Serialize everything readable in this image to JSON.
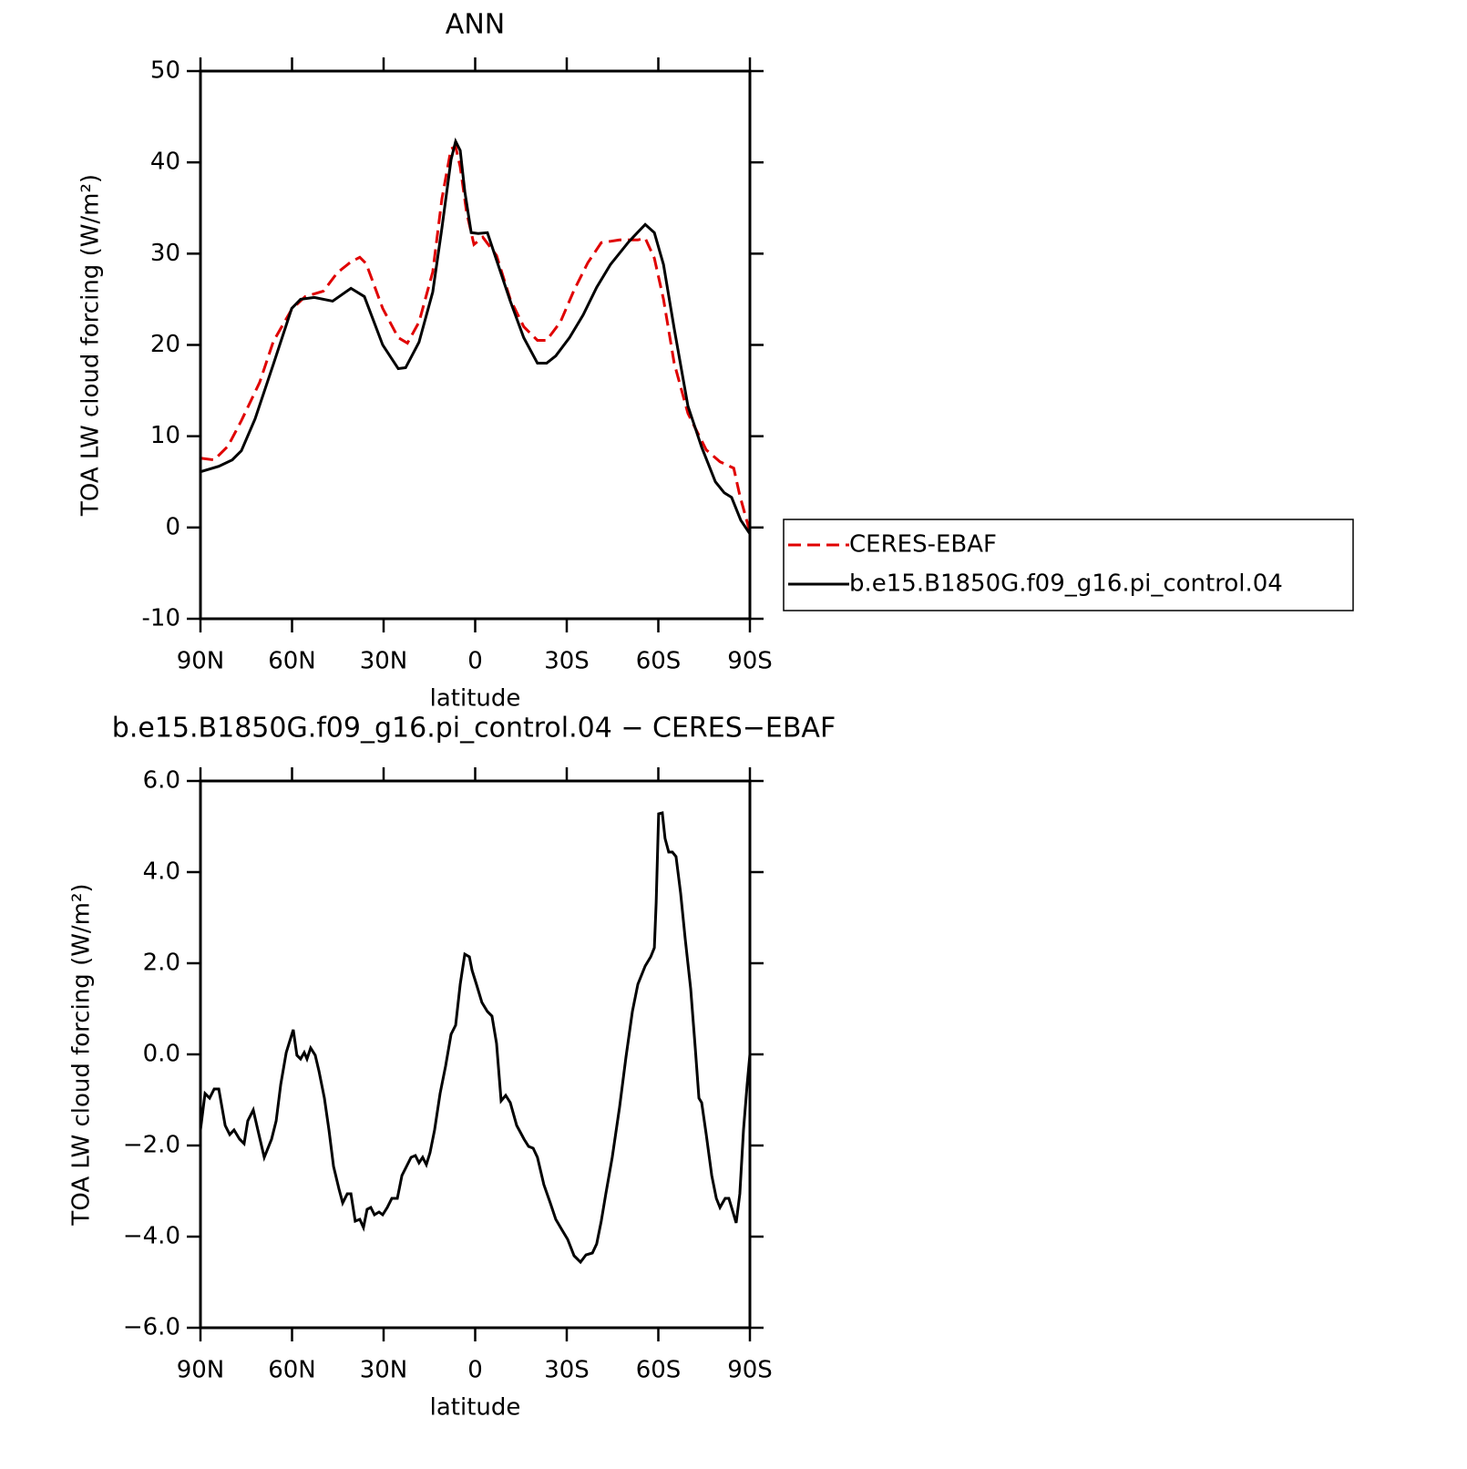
{
  "chart_data": [
    {
      "type": "line",
      "title": "ANN",
      "x_label": "latitude",
      "y_label": "TOA LW cloud forcing (W/m²)",
      "xlim": [
        90,
        -90
      ],
      "xticks": [
        {
          "value": 90,
          "label": "90N"
        },
        {
          "value": 60,
          "label": "60N"
        },
        {
          "value": 30,
          "label": "30N"
        },
        0,
        {
          "value": -30,
          "label": "30S"
        },
        {
          "value": -60,
          "label": "60S"
        },
        {
          "value": -90,
          "label": "90S"
        }
      ],
      "ylim": [
        -10,
        50
      ],
      "yticks": [
        -10,
        0,
        10,
        20,
        30,
        40,
        50
      ],
      "legend": "outside-right",
      "series": [
        {
          "name": "CERES-EBAF",
          "color": "#e00000",
          "dash": "dashed",
          "x": [
            90,
            85.5,
            81.0,
            76.6,
            70.6,
            66.1,
            60.1,
            55.7,
            49.7,
            45.2,
            40.7,
            37.8,
            35.7,
            30.3,
            25.2,
            22.2,
            18.4,
            13.9,
            10.9,
            7.9,
            6.4,
            4.9,
            2.8,
            0.4,
            -2.5,
            -7.0,
            -11.5,
            -15.9,
            -20.4,
            -23.4,
            -27.9,
            -32.4,
            -36.9,
            -41.3,
            -47.3,
            -53.3,
            -55.7,
            -58.7,
            -61.7,
            -65.2,
            -69.7,
            -75.7,
            -80.2,
            -84.7,
            -86.7,
            -90
          ],
          "values": [
            7.6,
            7.4,
            8.9,
            11.7,
            15.9,
            20.4,
            23.9,
            25.3,
            25.9,
            27.9,
            29.1,
            29.6,
            28.9,
            24.0,
            20.8,
            20.2,
            22.5,
            28.0,
            36.0,
            41.5,
            41.7,
            39.5,
            34.5,
            31.0,
            31.8,
            29.8,
            25.0,
            22.0,
            20.5,
            20.5,
            22.5,
            26.0,
            29.0,
            31.2,
            31.5,
            31.5,
            31.7,
            29.5,
            25.0,
            18.0,
            12.5,
            8.5,
            7.2,
            6.5,
            3.5,
            -0.5
          ]
        },
        {
          "name": "b.e15.B1850G.f09_g16.pi_control.04",
          "color": "#000000",
          "dash": "solid",
          "x": [
            90,
            84.0,
            79.6,
            76.6,
            72.1,
            66.1,
            60.1,
            57.2,
            52.7,
            46.7,
            40.7,
            36.3,
            30.3,
            25.2,
            22.8,
            18.4,
            13.9,
            10.9,
            7.9,
            6.4,
            4.9,
            3.4,
            1.3,
            -1.0,
            -4.0,
            -7.0,
            -11.5,
            -15.9,
            -20.4,
            -23.4,
            -26.4,
            -30.9,
            -35.4,
            -39.8,
            -44.3,
            -50.3,
            -55.7,
            -58.7,
            -61.7,
            -65.2,
            -69.7,
            -74.2,
            -78.7,
            -81.6,
            -84.0,
            -87.0,
            -90
          ],
          "values": [
            6.1,
            6.7,
            7.4,
            8.4,
            11.9,
            17.9,
            24.0,
            25.0,
            25.2,
            24.8,
            26.2,
            25.3,
            20.0,
            17.4,
            17.5,
            20.3,
            25.8,
            32.8,
            40.3,
            42.3,
            41.3,
            36.8,
            32.3,
            32.2,
            32.3,
            29.3,
            24.8,
            20.8,
            18.0,
            18.0,
            18.8,
            20.8,
            23.3,
            26.3,
            28.8,
            31.3,
            33.2,
            32.3,
            28.8,
            21.8,
            13.3,
            8.8,
            5.0,
            3.8,
            3.3,
            0.8,
            -0.7
          ]
        }
      ]
    },
    {
      "type": "line",
      "title": "b.e15.B1850G.f09_g16.pi_control.04 − CERES−EBAF",
      "x_label": "latitude",
      "y_label": "TOA LW cloud forcing (W/m²)",
      "xlim": [
        90,
        -90
      ],
      "xticks": [
        {
          "value": 90,
          "label": "90N"
        },
        {
          "value": 60,
          "label": "60N"
        },
        {
          "value": 30,
          "label": "30N"
        },
        0,
        {
          "value": -30,
          "label": "30S"
        },
        {
          "value": -60,
          "label": "60S"
        },
        {
          "value": -90,
          "label": "90S"
        }
      ],
      "ylim": [
        -6,
        6
      ],
      "yticks": [
        {
          "value": -6,
          "label": "−6.0"
        },
        {
          "value": -4,
          "label": "−4.0"
        },
        {
          "value": -2,
          "label": "−2.0"
        },
        {
          "value": 0,
          "label": "0.0"
        },
        {
          "value": 2,
          "label": "2.0"
        },
        {
          "value": 4,
          "label": "4.0"
        },
        {
          "value": 6,
          "label": "6.0"
        }
      ],
      "series": [
        {
          "color": "#000000",
          "dash": "solid",
          "x": [
            90.0,
            88.5,
            87.0,
            85.5,
            84.0,
            81.9,
            80.4,
            79.0,
            77.2,
            75.7,
            74.5,
            72.7,
            71.2,
            69.1,
            66.7,
            65.2,
            63.7,
            61.9,
            59.6,
            58.4,
            57.2,
            56.0,
            55.1,
            53.9,
            52.4,
            51.2,
            49.4,
            47.9,
            46.4,
            44.6,
            43.4,
            41.9,
            40.7,
            39.3,
            37.8,
            36.6,
            35.4,
            34.2,
            33.0,
            31.5,
            30.3,
            28.8,
            27.3,
            25.5,
            24.0,
            22.5,
            21.0,
            19.6,
            18.4,
            17.2,
            16.0,
            14.8,
            13.3,
            11.5,
            9.7,
            7.9,
            6.4,
            4.9,
            3.4,
            1.9,
            1.0,
            -0.4,
            -2.2,
            -4.0,
            -5.5,
            -7.0,
            -8.5,
            -10.0,
            -11.5,
            -13.6,
            -16.0,
            -17.5,
            -19.0,
            -20.4,
            -22.5,
            -24.6,
            -26.4,
            -28.5,
            -30.3,
            -32.4,
            -34.5,
            -36.3,
            -38.4,
            -39.8,
            -41.3,
            -42.8,
            -44.9,
            -47.3,
            -49.4,
            -51.5,
            -53.3,
            -55.7,
            -57.5,
            -58.7,
            -59.3,
            -60.1,
            -61.3,
            -62.2,
            -63.4,
            -64.6,
            -65.8,
            -67.3,
            -68.8,
            -70.6,
            -72.1,
            -73.3,
            -74.2,
            -75.7,
            -77.5,
            -79.0,
            -80.2,
            -81.9,
            -83.1,
            -84.0,
            -85.5,
            -86.7,
            -87.9,
            -89.1,
            -90.0
          ],
          "values": [
            -1.66,
            -0.86,
            -0.96,
            -0.76,
            -0.76,
            -1.56,
            -1.76,
            -1.66,
            -1.86,
            -1.96,
            -1.46,
            -1.22,
            -1.66,
            -2.26,
            -1.86,
            -1.46,
            -0.66,
            0.04,
            0.54,
            -0.02,
            -0.1,
            0.04,
            -0.1,
            0.14,
            -0.02,
            -0.36,
            -0.96,
            -1.66,
            -2.46,
            -2.96,
            -3.26,
            -3.06,
            -3.06,
            -3.66,
            -3.62,
            -3.8,
            -3.4,
            -3.36,
            -3.52,
            -3.46,
            -3.52,
            -3.36,
            -3.16,
            -3.16,
            -2.66,
            -2.46,
            -2.26,
            -2.22,
            -2.38,
            -2.26,
            -2.42,
            -2.16,
            -1.66,
            -0.86,
            -0.26,
            0.44,
            0.64,
            1.54,
            2.2,
            2.14,
            1.84,
            1.54,
            1.14,
            0.94,
            0.84,
            0.24,
            -1.02,
            -0.9,
            -1.06,
            -1.56,
            -1.86,
            -2.02,
            -2.06,
            -2.26,
            -2.86,
            -3.26,
            -3.62,
            -3.86,
            -4.06,
            -4.42,
            -4.56,
            -4.4,
            -4.36,
            -4.16,
            -3.66,
            -3.06,
            -2.26,
            -1.16,
            -0.06,
            0.94,
            1.54,
            1.94,
            2.14,
            2.34,
            3.34,
            5.28,
            5.3,
            4.74,
            4.44,
            4.44,
            4.34,
            3.54,
            2.54,
            1.44,
            0.14,
            -0.96,
            -1.06,
            -1.76,
            -2.66,
            -3.16,
            -3.36,
            -3.16,
            -3.16,
            -3.36,
            -3.7,
            -3.06,
            -1.66,
            -0.66,
            0.0
          ]
        }
      ]
    }
  ]
}
